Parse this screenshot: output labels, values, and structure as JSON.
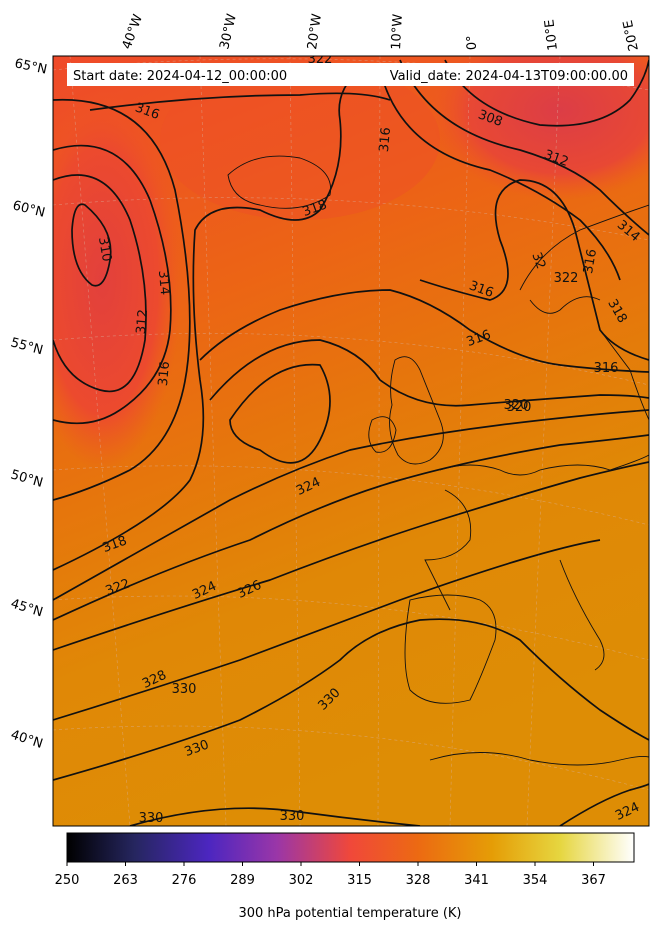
{
  "header": {
    "start_date": "Start date: 2024-04-12_00:00:00",
    "valid_date": "Valid_date: 2024-04-13T09:00:00.00"
  },
  "grid_labels": {
    "longitudes": [
      "40°W",
      "30°W",
      "20°W",
      "10°W",
      "0°",
      "10°E",
      "20°E"
    ],
    "latitudes": [
      "65°N",
      "60°N",
      "55°N",
      "50°N",
      "45°N",
      "40°N"
    ]
  },
  "contour_labels": [
    "316",
    "308",
    "312",
    "322",
    "320",
    "316",
    "310",
    "314",
    "312",
    "316",
    "318",
    "316",
    "316",
    "316",
    "320",
    "324",
    "318",
    "322",
    "324",
    "326",
    "328",
    "330",
    "330",
    "330",
    "330",
    "330",
    "324",
    "314",
    "316",
    "318",
    "32",
    "322"
  ],
  "colorbar": {
    "ticks": [
      "250",
      "263",
      "276",
      "289",
      "302",
      "315",
      "328",
      "341",
      "354",
      "367"
    ],
    "label": "300 hPa potential temperature (K)",
    "colormap": "CMRmap",
    "range": [
      250,
      376
    ]
  },
  "colors": {
    "cold_core": "#e0403a",
    "warm_field": "#e8650f",
    "hot_field": "#e08a05",
    "contour": "#111111"
  }
}
